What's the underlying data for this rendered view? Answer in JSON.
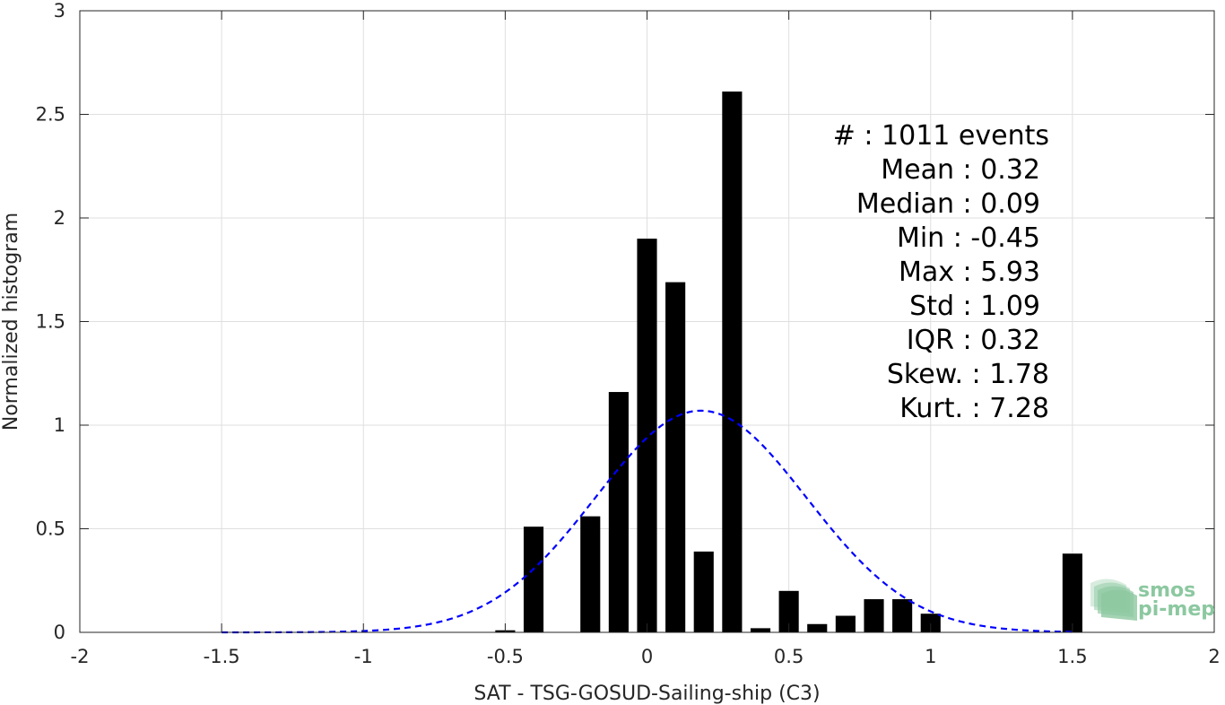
{
  "chart_data": {
    "type": "bar",
    "xlabel": "SAT - TSG-GOSUD-Sailing-ship (C3)",
    "ylabel": "Normalized histogram",
    "xlim": [
      -2,
      2
    ],
    "ylim": [
      0,
      3
    ],
    "xticks": [
      -2,
      -1.5,
      -1,
      -0.5,
      0,
      0.5,
      1,
      1.5,
      2
    ],
    "xtick_labels": [
      "-2",
      "-1.5",
      "-1",
      "-0.5",
      "0",
      "0.5",
      "1",
      "1.5",
      "2"
    ],
    "yticks": [
      0,
      0.5,
      1,
      1.5,
      2,
      2.5,
      3
    ],
    "ytick_labels": [
      "0",
      "0.5",
      "1",
      "1.5",
      "2",
      "2.5",
      "3"
    ],
    "grid": true,
    "bar_width": 0.07,
    "bar_color": "#000000",
    "bins": [
      {
        "x": -0.5,
        "value": 0.01
      },
      {
        "x": -0.4,
        "value": 0.51
      },
      {
        "x": -0.2,
        "value": 0.56
      },
      {
        "x": -0.1,
        "value": 1.16
      },
      {
        "x": 0.0,
        "value": 1.9
      },
      {
        "x": 0.1,
        "value": 1.69
      },
      {
        "x": 0.2,
        "value": 0.39
      },
      {
        "x": 0.3,
        "value": 2.61
      },
      {
        "x": 0.4,
        "value": 0.02
      },
      {
        "x": 0.5,
        "value": 0.2
      },
      {
        "x": 0.6,
        "value": 0.04
      },
      {
        "x": 0.7,
        "value": 0.08
      },
      {
        "x": 0.8,
        "value": 0.16
      },
      {
        "x": 0.9,
        "value": 0.16
      },
      {
        "x": 1.0,
        "value": 0.09
      },
      {
        "x": 1.5,
        "value": 0.38
      }
    ],
    "fit_curve": {
      "style": "dashed",
      "color": "#0000ff",
      "mu": 0.19,
      "peak": 1.07,
      "x_range": [
        -1.5,
        1.5
      ]
    },
    "stats": [
      "#  : 1011 events",
      "Mean : 0.32",
      "Median : 0.09",
      "Min : -0.45",
      "Max : 5.93",
      "Std : 1.09",
      "IQR : 0.32",
      "Skew. : 1.78",
      "Kurt. : 7.28"
    ]
  },
  "logo": {
    "line1": "smos",
    "line2": "pi-mep",
    "color": "#8cc8a0"
  }
}
